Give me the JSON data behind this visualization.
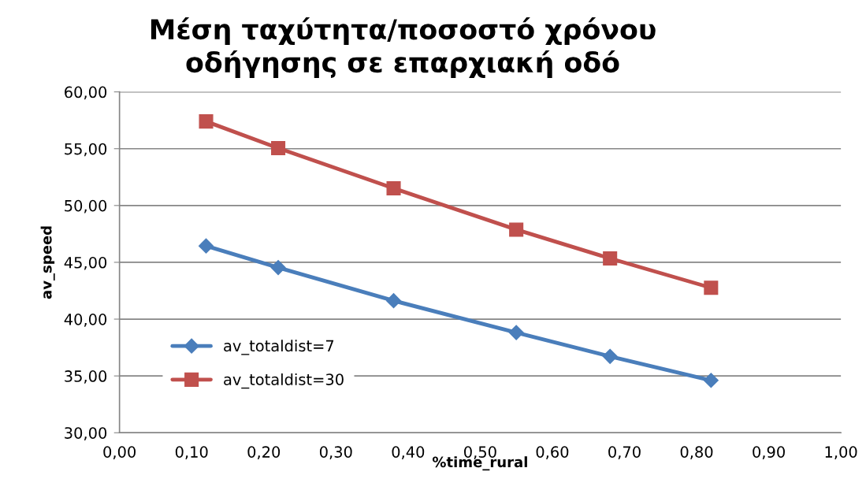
{
  "chart_data": {
    "type": "line",
    "title": "Μέση ταχύτητα/ποσοστό χρόνου\nοδήγησης σε επαρχιακή οδό",
    "xlabel": "%time_rural",
    "ylabel": "av_speed",
    "x": [
      0.12,
      0.22,
      0.38,
      0.55,
      0.68,
      0.82
    ],
    "series": [
      {
        "name": "av_totaldist=7",
        "color": "#4a7ebb",
        "marker": "diamond",
        "values": [
          46.44,
          44.54,
          41.62,
          38.82,
          36.72,
          34.61
        ]
      },
      {
        "name": "av_totaldist=30",
        "color": "#c0504d",
        "marker": "square",
        "values": [
          57.4,
          55.05,
          51.51,
          47.88,
          45.34,
          42.76
        ]
      }
    ],
    "xlim": [
      0,
      1
    ],
    "ylim": [
      30,
      60
    ],
    "xticks": [
      {
        "value": 0,
        "label": "0,00"
      },
      {
        "value": 0.1,
        "label": "0,10"
      },
      {
        "value": 0.2,
        "label": "0,20"
      },
      {
        "value": 0.3,
        "label": "0,30"
      },
      {
        "value": 0.4,
        "label": "0,40"
      },
      {
        "value": 0.5,
        "label": "0,50"
      },
      {
        "value": 0.6,
        "label": "0,60"
      },
      {
        "value": 0.7,
        "label": "0,70"
      },
      {
        "value": 0.8,
        "label": "0,80"
      },
      {
        "value": 0.9,
        "label": "0,90"
      },
      {
        "value": 1,
        "label": "1,00"
      }
    ],
    "yticks": [
      {
        "value": 30,
        "label": "30,00"
      },
      {
        "value": 35,
        "label": "35,00"
      },
      {
        "value": 40,
        "label": "40,00"
      },
      {
        "value": 45,
        "label": "45,00"
      },
      {
        "value": 50,
        "label": "50,00"
      },
      {
        "value": 55,
        "label": "55,00"
      },
      {
        "value": 60,
        "label": "60,00"
      }
    ],
    "grid": "y",
    "legend": "lower left",
    "line_style": "solid"
  }
}
